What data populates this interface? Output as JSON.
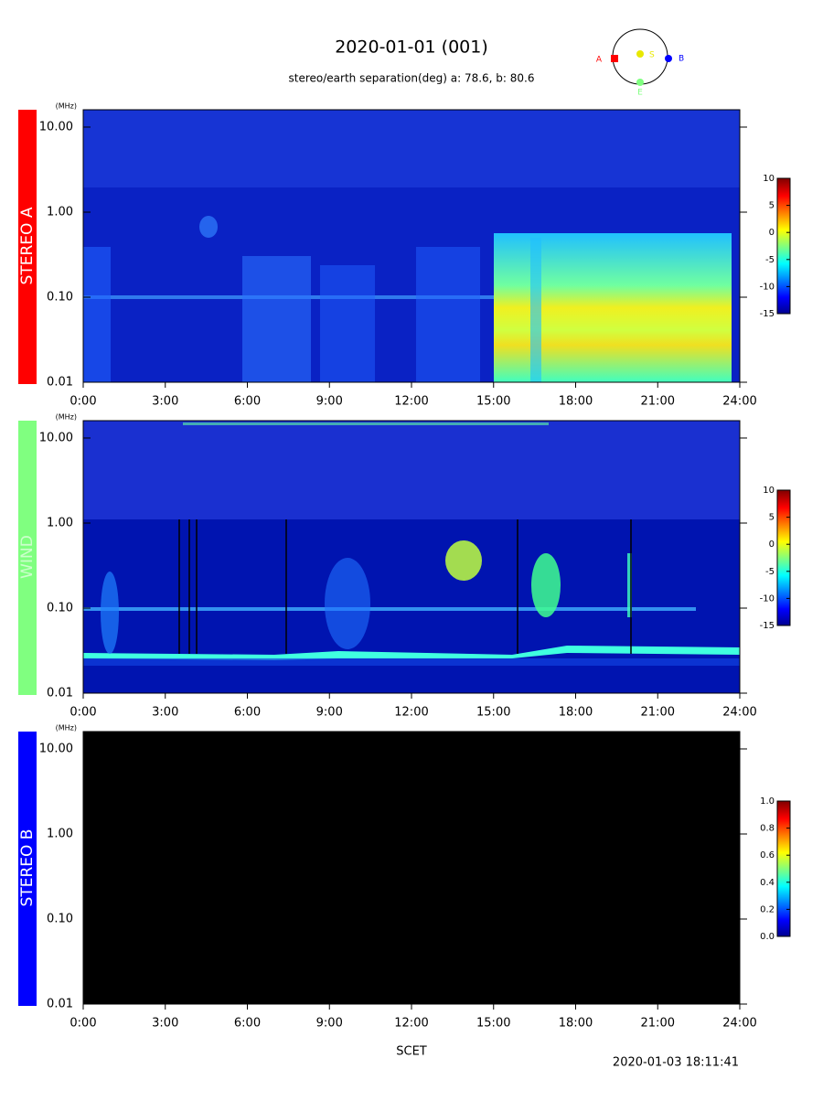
{
  "title": "2020-01-01 (001)",
  "subtitle": "stereo/earth separation(deg) a:  78.6, b:  80.6",
  "orbit": {
    "labels": [
      {
        "text": "A",
        "color": "#ff0000"
      },
      {
        "text": "S",
        "color": "#e8e800"
      },
      {
        "text": "B",
        "color": "#0000ff"
      },
      {
        "text": "E",
        "color": "#80ff80"
      }
    ]
  },
  "x_label": "SCET",
  "timestamp": "2020-01-03 18:11:41",
  "chart_data": [
    {
      "type": "spectrogram",
      "panel_label": "STEREO A",
      "panel_color": "#ff0000",
      "panel_label_color": "#ffffff",
      "y_unit": "(MHz)",
      "log_scale": true,
      "xlim": [
        0,
        24
      ],
      "xticks": [
        {
          "value": 0,
          "label": "0:00"
        },
        {
          "value": 3,
          "label": "3:00"
        },
        {
          "value": 6,
          "label": "6:00"
        },
        {
          "value": 9,
          "label": "9:00"
        },
        {
          "value": 12,
          "label": "12:00"
        },
        {
          "value": 15,
          "label": "15:00"
        },
        {
          "value": 18,
          "label": "18:00"
        },
        {
          "value": 21,
          "label": "21:00"
        },
        {
          "value": 24,
          "label": "24:00"
        }
      ],
      "ylim": [
        0.01,
        16
      ],
      "yticks": [
        0.01,
        {
          "value": 0.1,
          "label": "0.10"
        },
        {
          "value": 1,
          "label": "1.00"
        },
        {
          "value": 10,
          "label": "10.00"
        }
      ],
      "colorbar": {
        "lim": [
          -15,
          10
        ],
        "ticks": [
          -15,
          -10,
          -5,
          0,
          5,
          10
        ]
      }
    },
    {
      "type": "spectrogram",
      "panel_label": "WIND",
      "panel_color": "#80ff80",
      "panel_label_color": "#ccffcc",
      "y_unit": "(MHz)",
      "log_scale": true,
      "xlim": [
        0,
        24
      ],
      "xticks": [
        {
          "value": 0,
          "label": "0:00"
        },
        {
          "value": 3,
          "label": "3:00"
        },
        {
          "value": 6,
          "label": "6:00"
        },
        {
          "value": 9,
          "label": "9:00"
        },
        {
          "value": 12,
          "label": "12:00"
        },
        {
          "value": 15,
          "label": "15:00"
        },
        {
          "value": 18,
          "label": "18:00"
        },
        {
          "value": 21,
          "label": "21:00"
        },
        {
          "value": 24,
          "label": "24:00"
        }
      ],
      "ylim": [
        0.01,
        16
      ],
      "yticks": [
        0.01,
        {
          "value": 0.1,
          "label": "0.10"
        },
        {
          "value": 1,
          "label": "1.00"
        },
        {
          "value": 10,
          "label": "10.00"
        }
      ],
      "colorbar": {
        "lim": [
          -15,
          10
        ],
        "ticks": [
          -15,
          -10,
          -5,
          0,
          5,
          10
        ]
      }
    },
    {
      "type": "spectrogram",
      "panel_label": "STEREO B",
      "panel_color": "#0000ff",
      "panel_label_color": "#ffffff",
      "y_unit": "(MHz)",
      "log_scale": true,
      "xlim": [
        0,
        24
      ],
      "xticks": [
        {
          "value": 0,
          "label": "0:00"
        },
        {
          "value": 3,
          "label": "3:00"
        },
        {
          "value": 6,
          "label": "6:00"
        },
        {
          "value": 9,
          "label": "9:00"
        },
        {
          "value": 12,
          "label": "12:00"
        },
        {
          "value": 15,
          "label": "15:00"
        },
        {
          "value": 18,
          "label": "18:00"
        },
        {
          "value": 21,
          "label": "21:00"
        },
        {
          "value": 24,
          "label": "24:00"
        }
      ],
      "ylim": [
        0.01,
        16
      ],
      "yticks": [
        0.01,
        {
          "value": 0.1,
          "label": "0.10"
        },
        {
          "value": 1,
          "label": "1.00"
        },
        {
          "value": 10,
          "label": "10.00"
        }
      ],
      "colorbar": {
        "lim": [
          0,
          1
        ],
        "ticks": [
          {
            "value": 0,
            "label": "0.0"
          },
          0.2,
          0.4,
          0.6,
          0.8,
          {
            "value": 1,
            "label": "1.0"
          }
        ]
      }
    }
  ]
}
